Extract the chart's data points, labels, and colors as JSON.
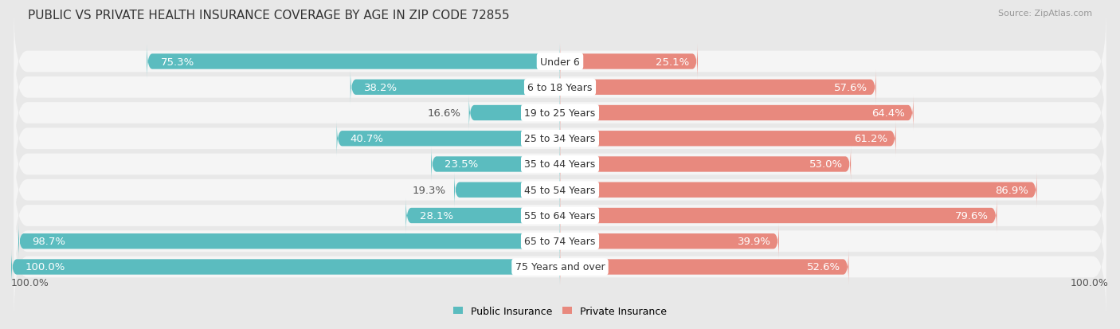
{
  "title": "PUBLIC VS PRIVATE HEALTH INSURANCE COVERAGE BY AGE IN ZIP CODE 72855",
  "source": "Source: ZipAtlas.com",
  "categories": [
    "Under 6",
    "6 to 18 Years",
    "19 to 25 Years",
    "25 to 34 Years",
    "35 to 44 Years",
    "45 to 54 Years",
    "55 to 64 Years",
    "65 to 74 Years",
    "75 Years and over"
  ],
  "public_values": [
    75.3,
    38.2,
    16.6,
    40.7,
    23.5,
    19.3,
    28.1,
    98.7,
    100.0
  ],
  "private_values": [
    25.1,
    57.6,
    64.4,
    61.2,
    53.0,
    86.9,
    79.6,
    39.9,
    52.6
  ],
  "public_color": "#5bbcbf",
  "private_color": "#e8897e",
  "background_color": "#e8e8e8",
  "bar_row_color": "#f5f5f5",
  "bar_height": 0.6,
  "max_value": 100.0,
  "label_fontsize": 9.5,
  "title_fontsize": 11,
  "category_fontsize": 9,
  "footer_fontsize": 9,
  "label_color_inside": "#ffffff",
  "label_color_outside": "#555555"
}
